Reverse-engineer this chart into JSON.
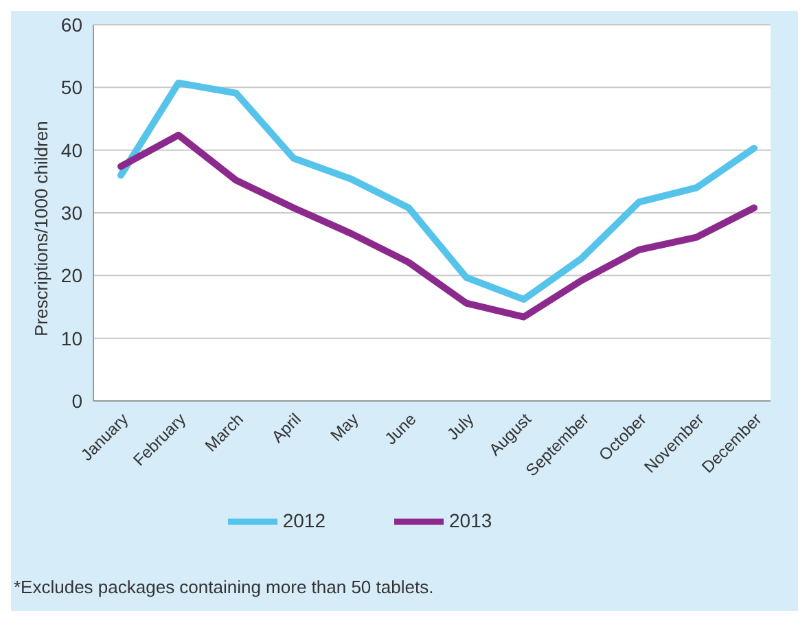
{
  "chart_data": {
    "type": "line",
    "ylabel": "Prescriptions/1000 children",
    "categories": [
      "January",
      "February",
      "March",
      "April",
      "May",
      "June",
      "July",
      "August",
      "September",
      "October",
      "November",
      "December"
    ],
    "series": [
      {
        "name": "2012",
        "color": "#55c3ea",
        "values": [
          36,
          50.7,
          49.1,
          38.7,
          35.4,
          30.8,
          19.7,
          16.2,
          22.7,
          31.7,
          34,
          40.3
        ]
      },
      {
        "name": "2013",
        "color": "#8b2a8c",
        "values": [
          37.4,
          42.4,
          35.2,
          30.8,
          26.7,
          22.1,
          15.6,
          13.4,
          19.2,
          24.1,
          26.1,
          30.8
        ]
      }
    ],
    "ylim": [
      0,
      60
    ],
    "yticks": [
      0,
      10,
      20,
      30,
      40,
      50,
      60
    ],
    "grid": "y",
    "legend": "bottom",
    "marker": "none",
    "line_style": "solid",
    "annotations": [
      "*Excludes packages containing more than 50 tablets."
    ]
  }
}
